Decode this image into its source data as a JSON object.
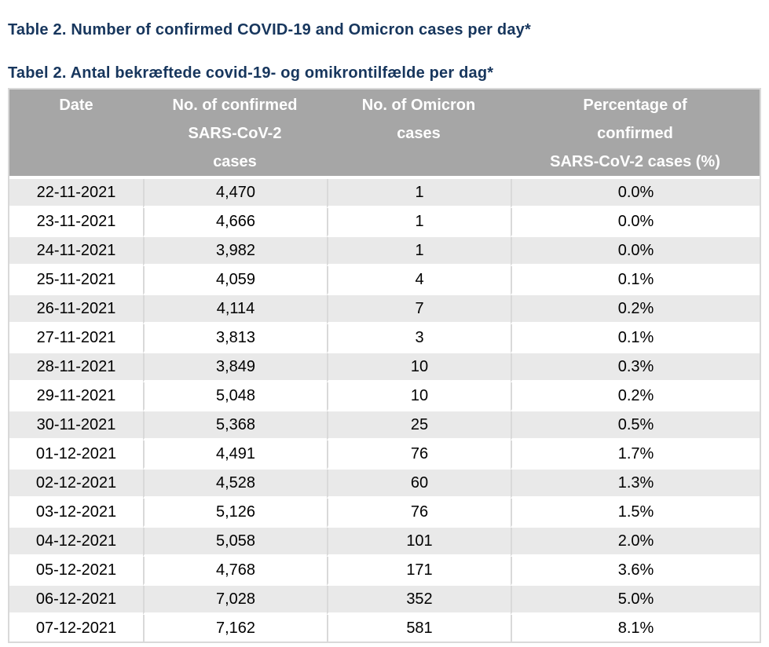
{
  "page": {
    "title_en": "Table 2. Number of confirmed COVID-19 and Omicron cases per day*",
    "title_da": "Tabel 2. Antal bekræftede covid-19- og omikrontilfælde per dag*"
  },
  "colors": {
    "title_text": "#17365D",
    "header_bg": "#A6A6A6",
    "header_text": "#FFFFFF",
    "row_stripe_bg": "#E9E9E9",
    "row_bg": "#FFFFFF",
    "body_text": "#000000",
    "grid_line": "#D9D9D9"
  },
  "table": {
    "columns": [
      "Date",
      "No. of confirmed\nSARS-CoV-2\ncases",
      "No. of Omicron\ncases",
      "Percentage of\nconfirmed\nSARS-CoV-2 cases (%)"
    ],
    "rows": [
      [
        "22-11-2021",
        "4,470",
        "1",
        "0.0%"
      ],
      [
        "23-11-2021",
        "4,666",
        "1",
        "0.0%"
      ],
      [
        "24-11-2021",
        "3,982",
        "1",
        "0.0%"
      ],
      [
        "25-11-2021",
        "4,059",
        "4",
        "0.1%"
      ],
      [
        "26-11-2021",
        "4,114",
        "7",
        "0.2%"
      ],
      [
        "27-11-2021",
        "3,813",
        "3",
        "0.1%"
      ],
      [
        "28-11-2021",
        "3,849",
        "10",
        "0.3%"
      ],
      [
        "29-11-2021",
        "5,048",
        "10",
        "0.2%"
      ],
      [
        "30-11-2021",
        "5,368",
        "25",
        "0.5%"
      ],
      [
        "01-12-2021",
        "4,491",
        "76",
        "1.7%"
      ],
      [
        "02-12-2021",
        "4,528",
        "60",
        "1.3%"
      ],
      [
        "03-12-2021",
        "5,126",
        "76",
        "1.5%"
      ],
      [
        "04-12-2021",
        "5,058",
        "101",
        "2.0%"
      ],
      [
        "05-12-2021",
        "4,768",
        "171",
        "3.6%"
      ],
      [
        "06-12-2021",
        "7,028",
        "352",
        "5.0%"
      ],
      [
        "07-12-2021",
        "7,162",
        "581",
        "8.1%"
      ]
    ]
  }
}
